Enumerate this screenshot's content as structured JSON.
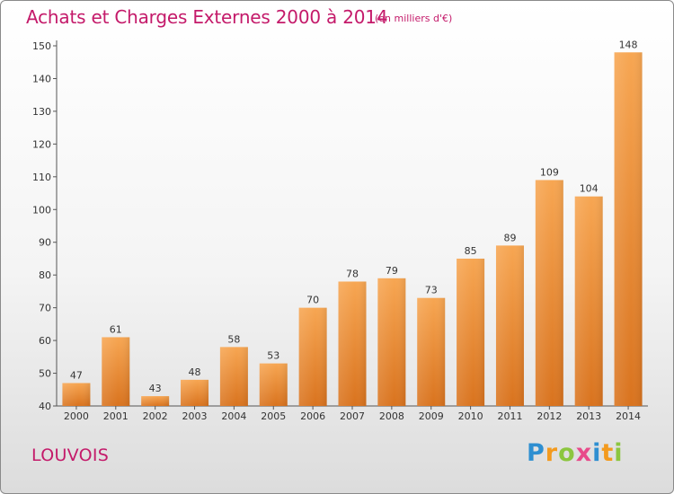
{
  "header": {
    "title": "Achats et Charges Externes 2000 à 2014",
    "subtitle": "(en milliers d'€)"
  },
  "footer": {
    "commune": "LOUVOIS",
    "brand_letters": [
      "P",
      "r",
      "o",
      "x",
      "i",
      "t",
      "i"
    ],
    "brand_colors": [
      "#2e8fd1",
      "#f39a1e",
      "#8cc63f",
      "#e84b8a",
      "#2e8fd1",
      "#f39a1e",
      "#8cc63f"
    ]
  },
  "chart_data": {
    "type": "bar",
    "title": "Achats et Charges Externes 2000 à 2014",
    "subtitle": "(en milliers d'€)",
    "categories": [
      "2000",
      "2001",
      "2002",
      "2003",
      "2004",
      "2005",
      "2006",
      "2007",
      "2008",
      "2009",
      "2010",
      "2011",
      "2012",
      "2013",
      "2014"
    ],
    "values": [
      47,
      61,
      43,
      48,
      58,
      53,
      70,
      78,
      79,
      73,
      85,
      89,
      109,
      104,
      148
    ],
    "ylim": [
      40,
      150
    ],
    "yticks": [
      40,
      50,
      60,
      70,
      80,
      90,
      100,
      110,
      120,
      130,
      140,
      150
    ],
    "grid": false,
    "bar_color_light": "#f7a652",
    "bar_color_dark": "#d9731e",
    "xlabel": "",
    "ylabel": ""
  }
}
